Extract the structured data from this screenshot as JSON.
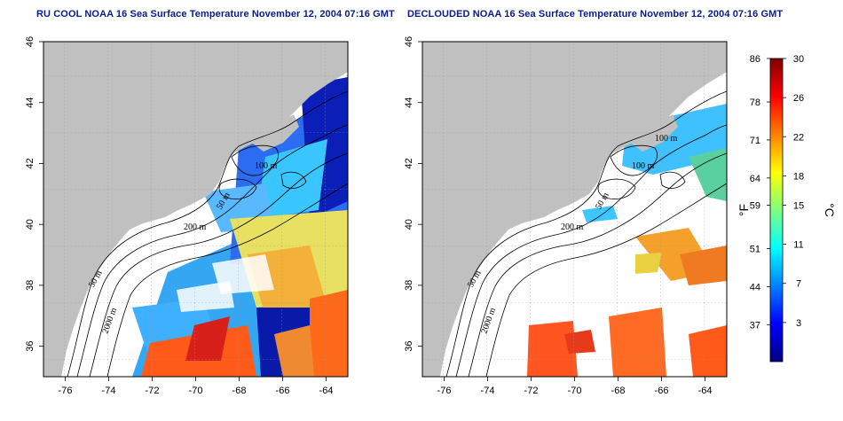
{
  "left_map": {
    "title": "RU COOL NOAA 16 Sea Surface Temperature November 12, 2004 07:16 GMT"
  },
  "right_map": {
    "title": "DECLOUDED NOAA 16 Sea Surface Temperature November 12, 2004 07:16 GMT"
  },
  "axes": {
    "lon_ticks": [
      "-76",
      "-74",
      "-72",
      "-70",
      "-68",
      "-66",
      "-64"
    ],
    "lat_ticks": [
      "36",
      "38",
      "40",
      "42",
      "44",
      "46"
    ],
    "lon_range": [
      -77,
      -63
    ],
    "lat_range": [
      35,
      46
    ]
  },
  "contour_labels": {
    "c100": "100 m",
    "c50": "50 m",
    "c200": "200 m",
    "c2000": "2000 m"
  },
  "colorbar": {
    "f_unit": "°F",
    "c_unit": "°C",
    "f_ticks": [
      "86",
      "78",
      "71",
      "64",
      "59",
      "51",
      "44",
      "37"
    ],
    "c_ticks": [
      "30",
      "26",
      "22",
      "18",
      "15",
      "11",
      "7",
      "3"
    ],
    "range_c": [
      -1,
      30
    ],
    "colors": [
      "#00007f",
      "#0000ff",
      "#0080ff",
      "#00ffff",
      "#80ff80",
      "#ffff00",
      "#ff8000",
      "#ff0000",
      "#7f0000"
    ]
  },
  "colors": {
    "land": "#c0c0c0",
    "ocean": "#ffffff",
    "title": "#0b1a8c"
  }
}
